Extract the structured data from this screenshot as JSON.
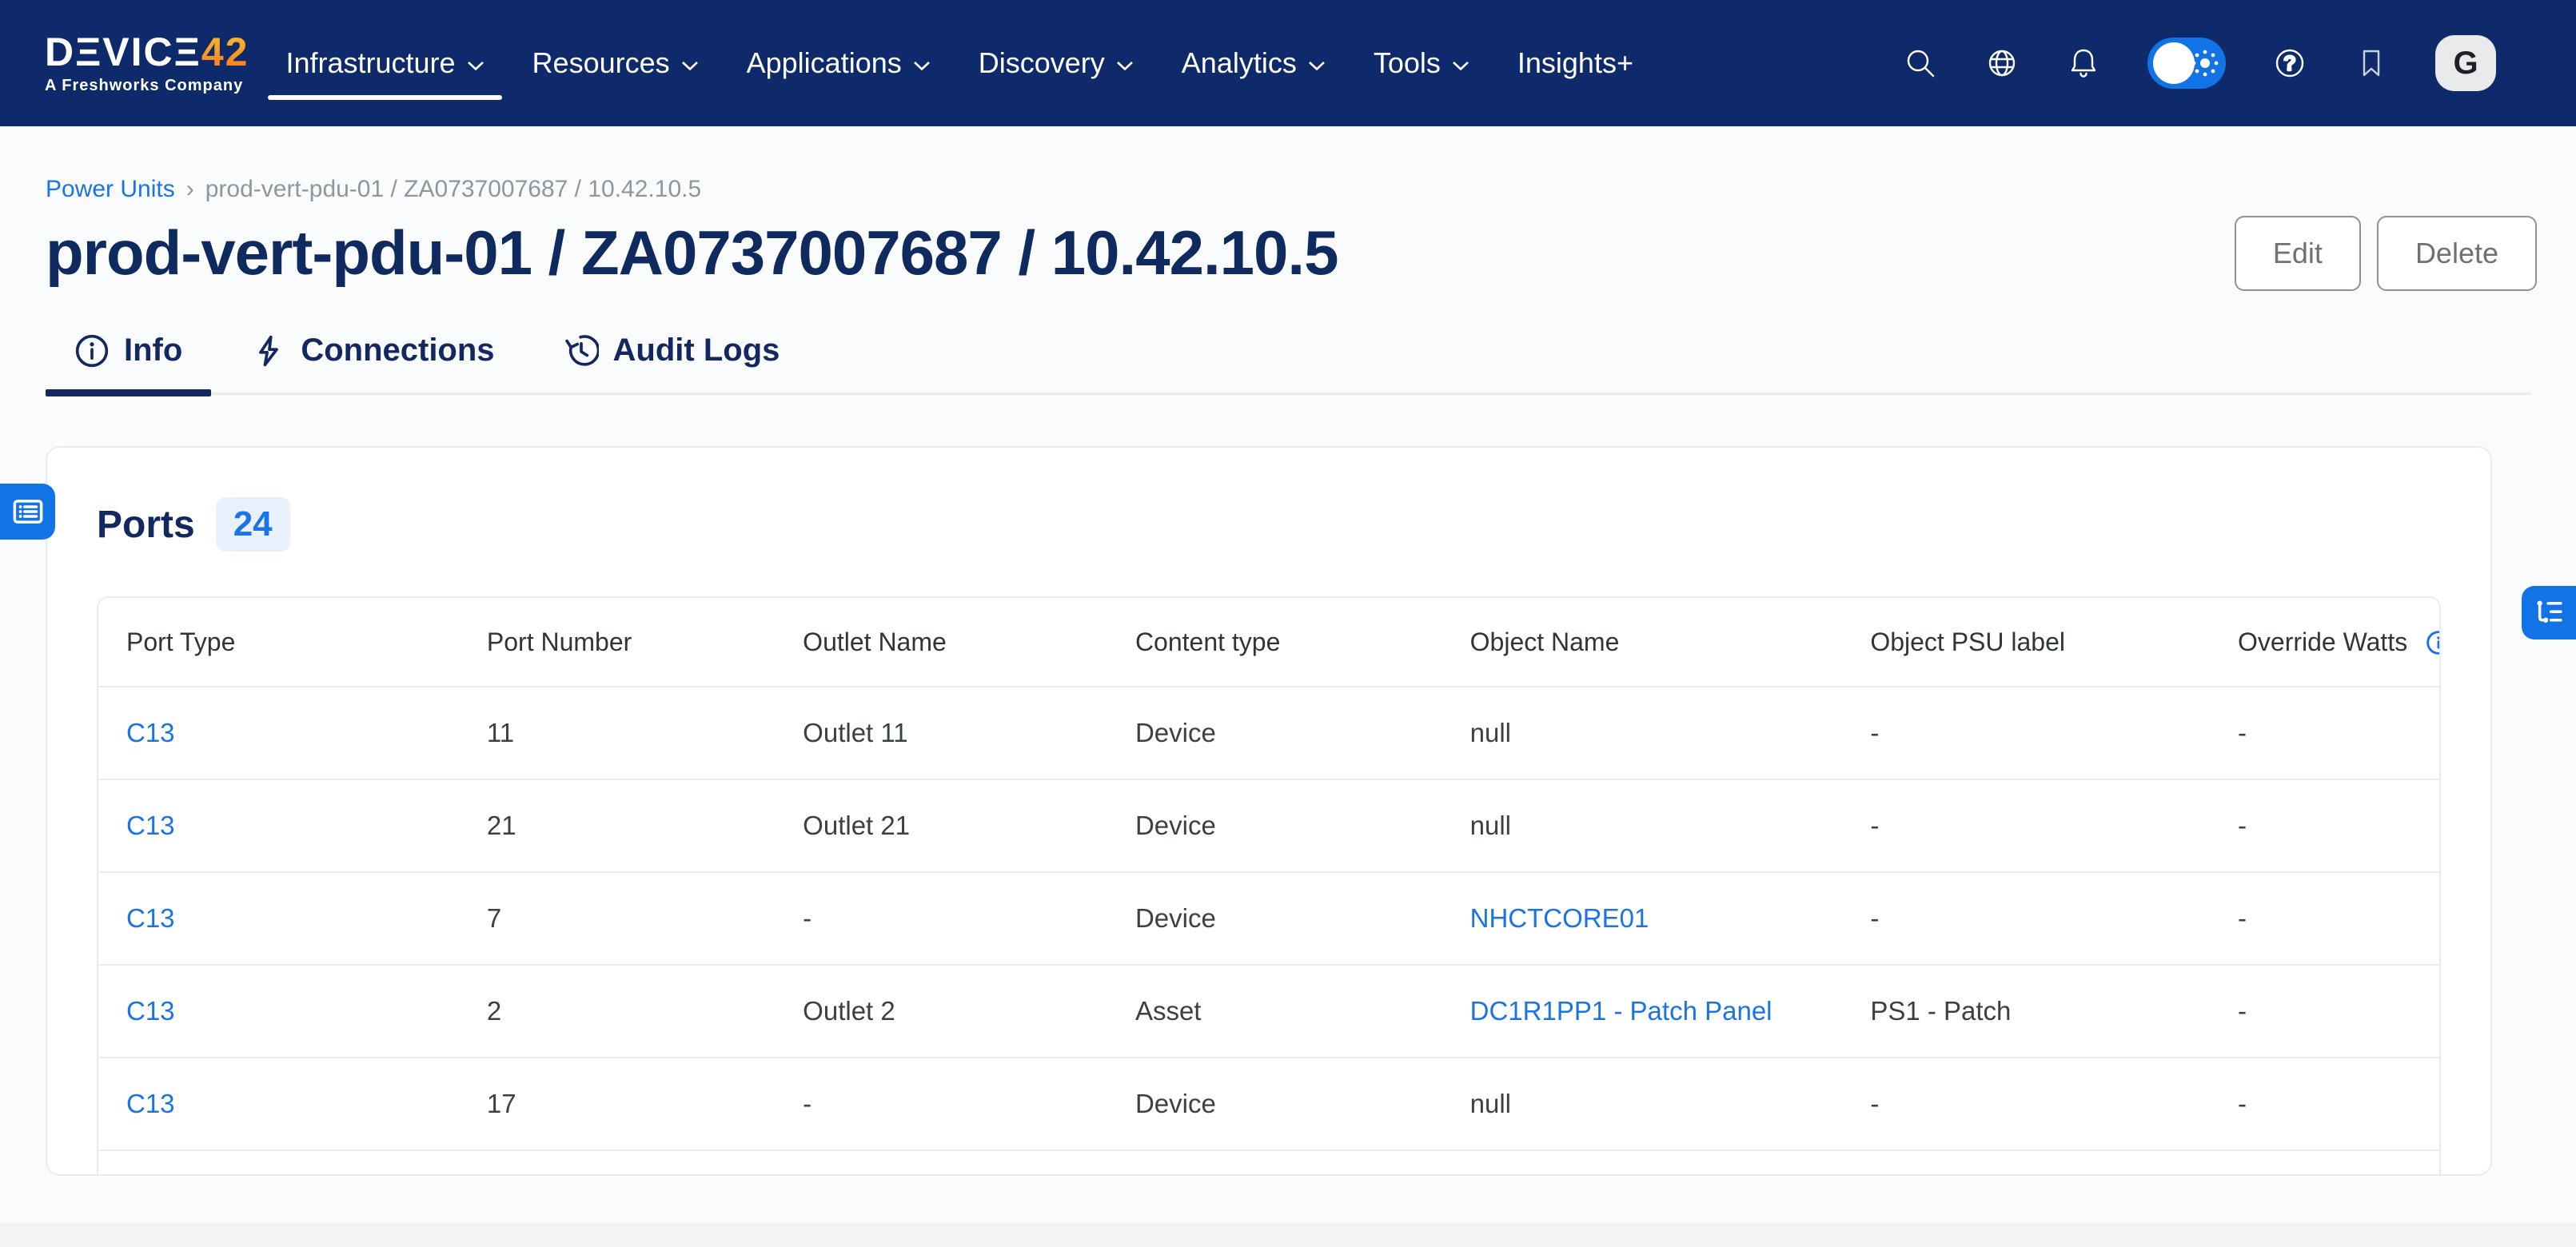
{
  "navbar": {
    "logo": {
      "main": "DΞVICΞ",
      "accent": "42",
      "subtitle": "A Freshworks Company"
    },
    "items": [
      {
        "label": "Infrastructure",
        "has_chevron": true,
        "active": true
      },
      {
        "label": "Resources",
        "has_chevron": true,
        "active": false
      },
      {
        "label": "Applications",
        "has_chevron": true,
        "active": false
      },
      {
        "label": "Discovery",
        "has_chevron": true,
        "active": false
      },
      {
        "label": "Analytics",
        "has_chevron": true,
        "active": false
      },
      {
        "label": "Tools",
        "has_chevron": true,
        "active": false
      },
      {
        "label": "Insights+",
        "has_chevron": false,
        "active": false
      }
    ],
    "icons": [
      "search-icon",
      "globe-icon",
      "bell-icon",
      "theme-toggle",
      "help-icon",
      "bookmark-icon"
    ],
    "help_glyph": "?",
    "avatar_initial": "G",
    "colors": {
      "background": "#0e2a6a",
      "toggle_blue": "#1273e6"
    }
  },
  "breadcrumb": {
    "link": "Power Units",
    "separator": "›",
    "current": "prod-vert-pdu-01 / ZA0737007687 / 10.42.10.5"
  },
  "header": {
    "title": "prod-vert-pdu-01 / ZA0737007687 / 10.42.10.5",
    "edit_label": "Edit",
    "delete_label": "Delete"
  },
  "tabs": [
    {
      "label": "Info",
      "icon": "info-icon",
      "active": true
    },
    {
      "label": "Connections",
      "icon": "lightning-icon",
      "active": false
    },
    {
      "label": "Audit Logs",
      "icon": "history-icon",
      "active": false
    }
  ],
  "ports": {
    "title": "Ports",
    "count": "24",
    "table": {
      "columns": [
        "Port Type",
        "Port Number",
        "Outlet Name",
        "Content type",
        "Object Name",
        "Object PSU label",
        "Override Watts"
      ],
      "last_column_has_info_icon": true,
      "rows": [
        [
          {
            "text": "C13",
            "link": true
          },
          "11",
          "Outlet 11",
          "Device",
          "null",
          "-",
          "-"
        ],
        [
          {
            "text": "C13",
            "link": true
          },
          "21",
          "Outlet 21",
          "Device",
          "null",
          "-",
          "-"
        ],
        [
          {
            "text": "C13",
            "link": true
          },
          "7",
          "-",
          "Device",
          {
            "text": "NHCTCORE01",
            "link": true
          },
          "-",
          "-"
        ],
        [
          {
            "text": "C13",
            "link": true
          },
          "2",
          "Outlet 2",
          "Asset",
          {
            "text": "DC1R1PP1 - Patch Panel",
            "link": true
          },
          "PS1 - Patch",
          "-"
        ],
        [
          {
            "text": "C13",
            "link": true
          },
          "17",
          "-",
          "Device",
          "null",
          "-",
          "-"
        ]
      ]
    }
  },
  "colors": {
    "link_blue": "#1a73e8",
    "navy_text": "#13285f",
    "accent_blue": "#1273e6",
    "muted_gray": "#8f969c"
  }
}
